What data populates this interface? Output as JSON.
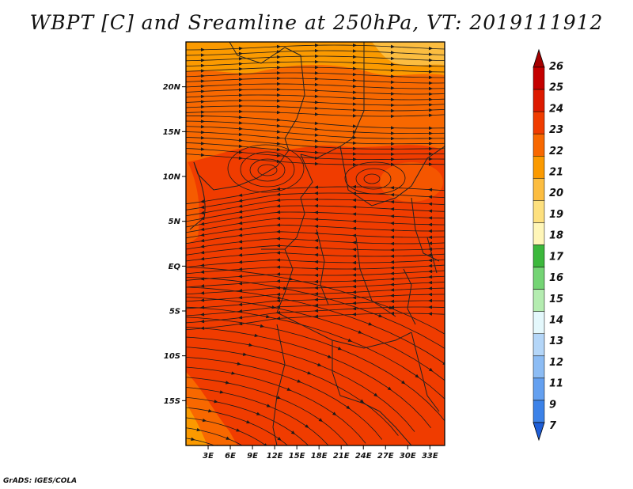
{
  "title": "WBPT [C] and Sreamline at 250hPa, VT: 2019111912",
  "credit": "GrADS: IGES/COLA",
  "map": {
    "lon_range": [
      0,
      35
    ],
    "lat_range": [
      -20,
      25
    ],
    "lat_ticks": [
      {
        "value": 20,
        "label": "20N"
      },
      {
        "value": 15,
        "label": "15N"
      },
      {
        "value": 10,
        "label": "10N"
      },
      {
        "value": 5,
        "label": "5N"
      },
      {
        "value": 0,
        "label": "EQ"
      },
      {
        "value": -5,
        "label": "5S"
      },
      {
        "value": -10,
        "label": "10S"
      },
      {
        "value": -15,
        "label": "15S"
      }
    ],
    "lon_ticks": [
      {
        "value": 3,
        "label": "3E"
      },
      {
        "value": 6,
        "label": "6E"
      },
      {
        "value": 9,
        "label": "9E"
      },
      {
        "value": 12,
        "label": "12E"
      },
      {
        "value": 15,
        "label": "15E"
      },
      {
        "value": 18,
        "label": "18E"
      },
      {
        "value": 21,
        "label": "21E"
      },
      {
        "value": 24,
        "label": "24E"
      },
      {
        "value": 27,
        "label": "27E"
      },
      {
        "value": 30,
        "label": "30E"
      },
      {
        "value": 33,
        "label": "33E"
      }
    ]
  },
  "colorbar": {
    "levels": [
      {
        "label": "26",
        "color": "#a50000"
      },
      {
        "label": "25",
        "color": "#c40000"
      },
      {
        "label": "24",
        "color": "#dd1a00"
      },
      {
        "label": "23",
        "color": "#f03c00"
      },
      {
        "label": "22",
        "color": "#f86800"
      },
      {
        "label": "21",
        "color": "#fb9a00"
      },
      {
        "label": "20",
        "color": "#fcbd40"
      },
      {
        "label": "19",
        "color": "#fde07e"
      },
      {
        "label": "18",
        "color": "#fff6b8"
      },
      {
        "label": "17",
        "color": "#3cb83c"
      },
      {
        "label": "16",
        "color": "#74d474"
      },
      {
        "label": "15",
        "color": "#b4ecb0"
      },
      {
        "label": "14",
        "color": "#e4f8fc"
      },
      {
        "label": "13",
        "color": "#b4d6f8"
      },
      {
        "label": "12",
        "color": "#8cbcf4"
      },
      {
        "label": "11",
        "color": "#64a0f0"
      },
      {
        "label": "9",
        "color": "#3c82e8"
      },
      {
        "label": "7",
        "color": "#1e5ed8"
      }
    ]
  }
}
